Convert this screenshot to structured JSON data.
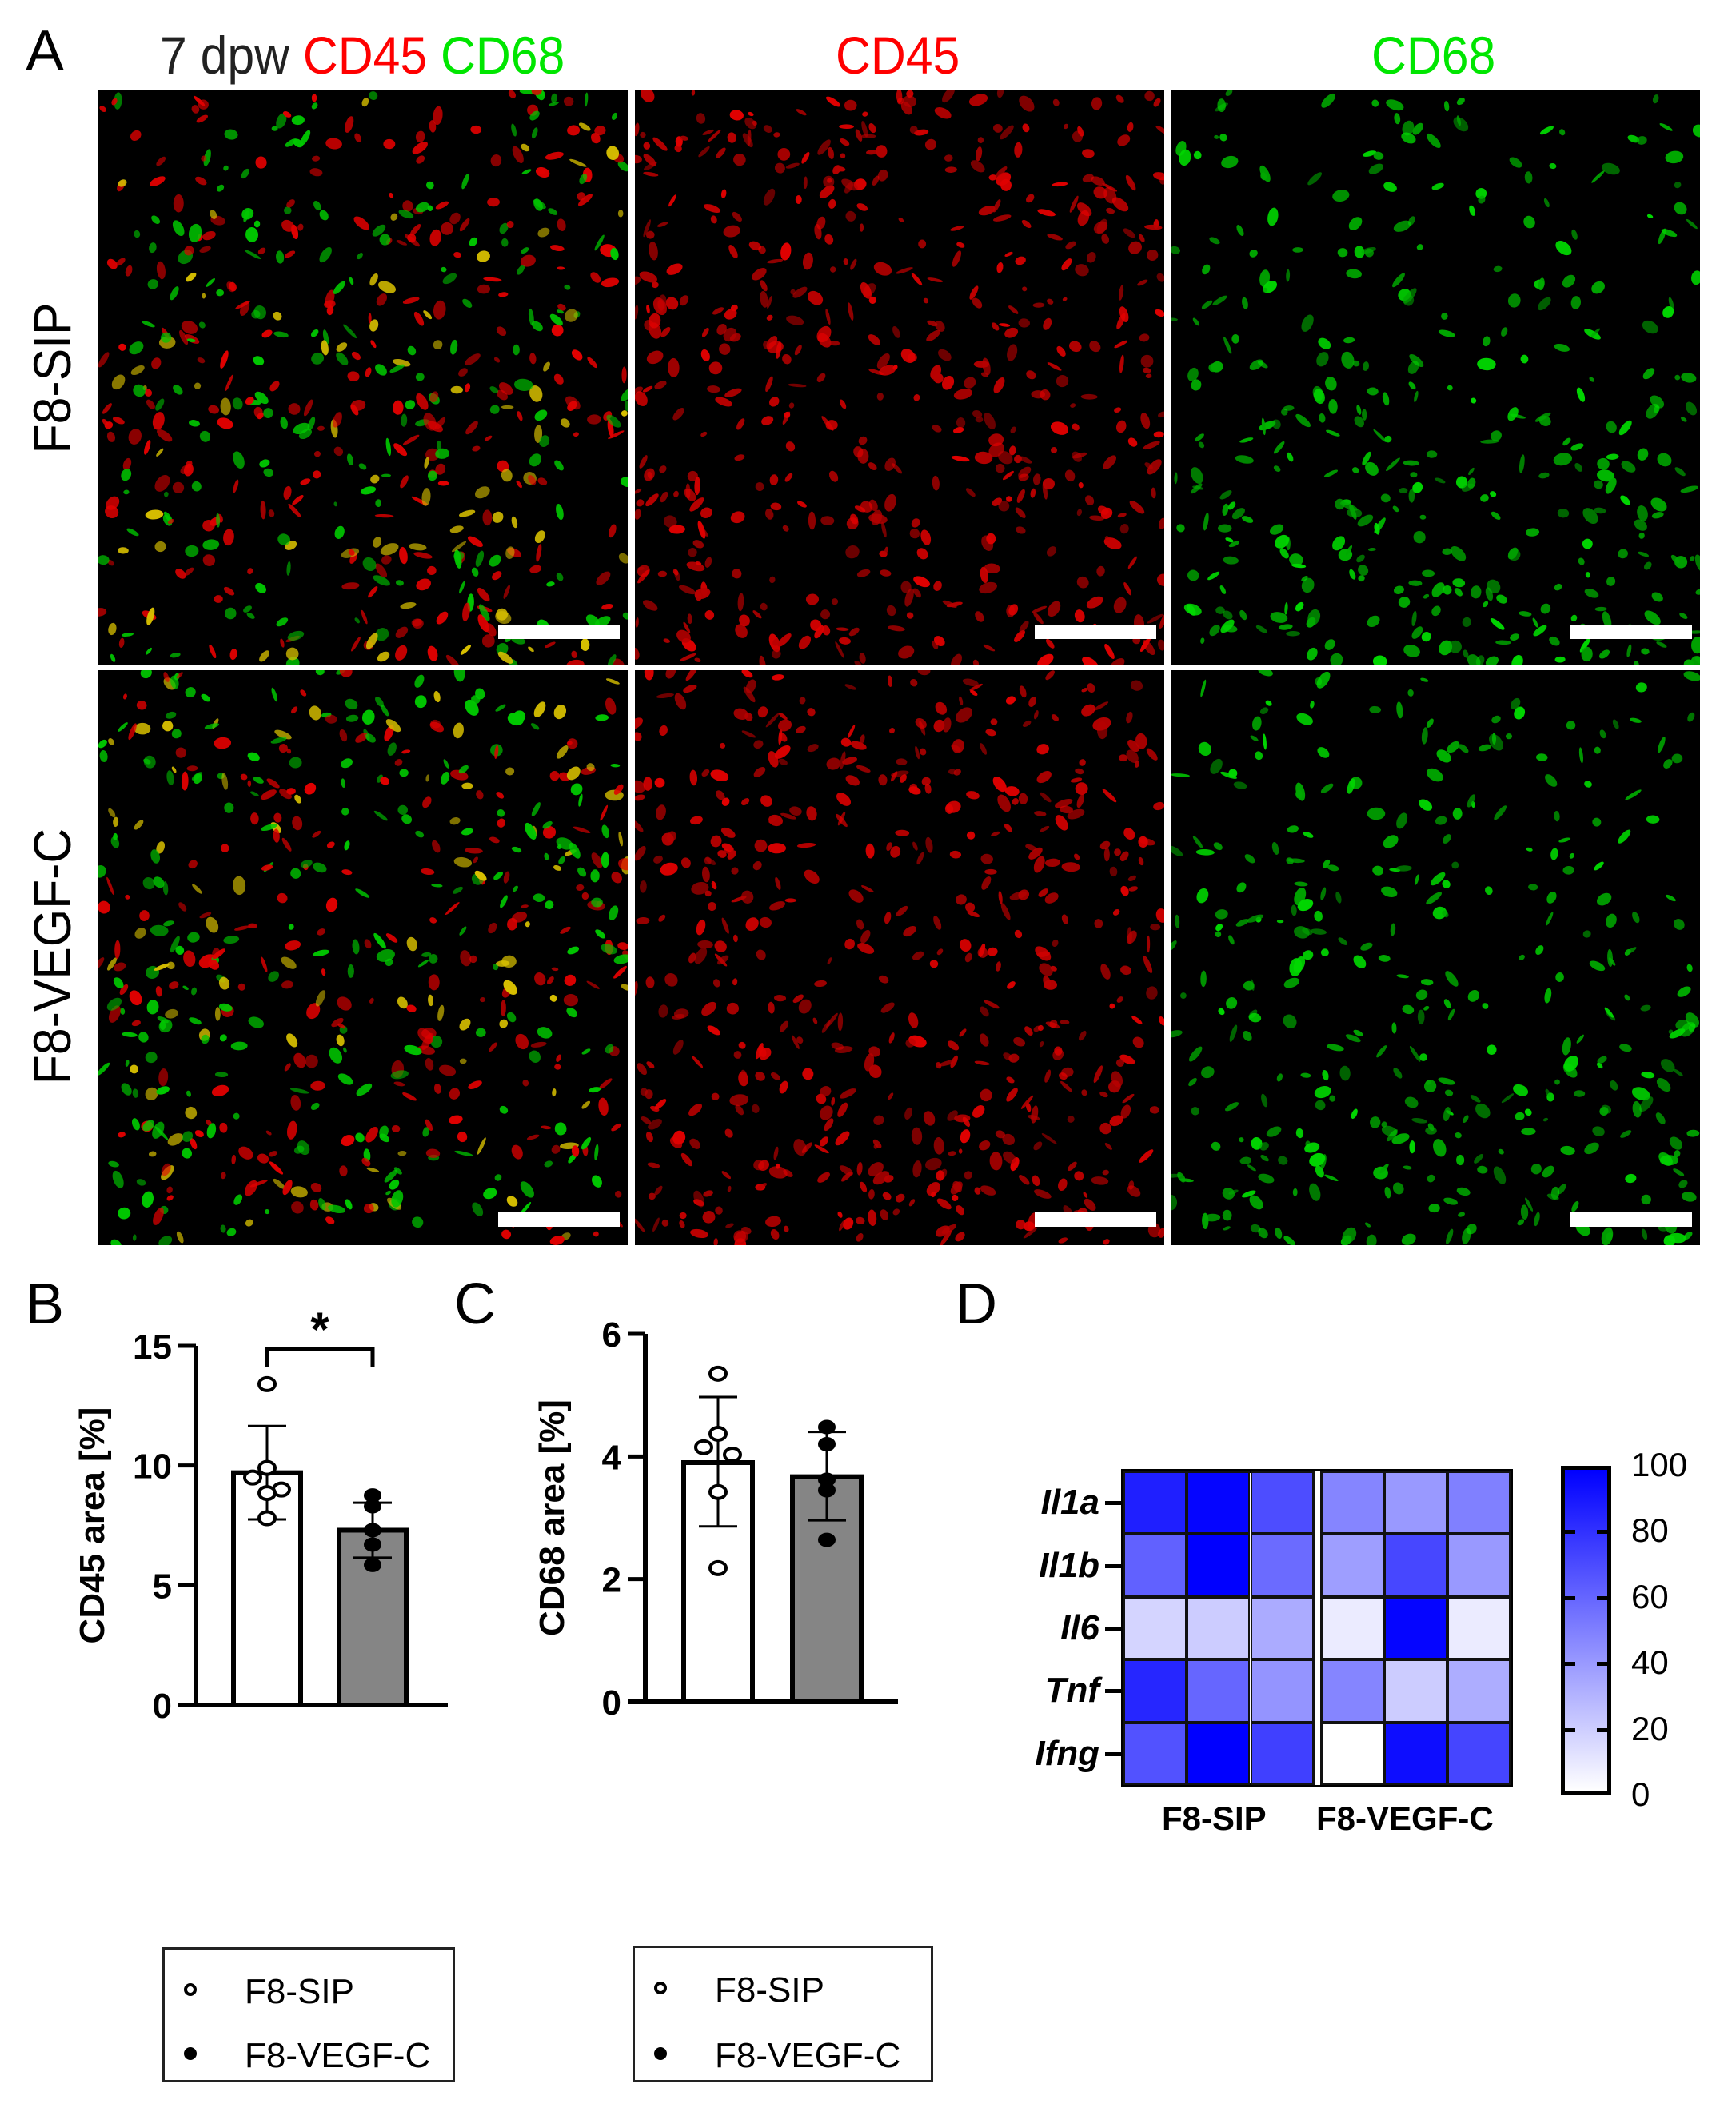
{
  "panelA": {
    "letter": "A",
    "title_prefix": "7 dpw",
    "title_cd45": "CD45",
    "title_cd68": "CD68",
    "col2_title": "CD45",
    "col3_title": "CD68",
    "row1_label": "F8-SIP",
    "row2_label": "F8-VEGF-C",
    "colors": {
      "red": "#ff0000",
      "green": "#00e600",
      "text": "#222222"
    }
  },
  "panelB": {
    "letter": "B"
  },
  "panelC": {
    "letter": "C"
  },
  "panelD": {
    "letter": "D"
  },
  "legendB": {
    "items": [
      {
        "label": "F8-SIP",
        "marker": "open-circle"
      },
      {
        "label": "F8-VEGF-C",
        "marker": "filled-circle"
      }
    ]
  },
  "legendC": {
    "items": [
      {
        "label": "F8-SIP",
        "marker": "open-circle"
      },
      {
        "label": "F8-VEGF-C",
        "marker": "filled-circle"
      }
    ]
  },
  "chart_data": [
    {
      "id": "B",
      "type": "bar",
      "title": "",
      "xlabel": "",
      "ylabel": "CD45 area [%]",
      "ylim": [
        0,
        15
      ],
      "yticks": [
        0,
        5,
        10,
        15
      ],
      "grid": false,
      "legend_position": "bottom",
      "categories": [
        "F8-SIP",
        "F8-VEGF-C"
      ],
      "bar_colors": [
        "#ffffff",
        "#858585"
      ],
      "series": [
        {
          "name": "mean",
          "values": [
            9.7,
            7.3
          ]
        },
        {
          "name": "sd_upper",
          "values": [
            11.65,
            8.45
          ]
        },
        {
          "name": "sd_lower",
          "values": [
            7.75,
            6.15
          ]
        }
      ],
      "points": {
        "F8-SIP": [
          13.4,
          9.9,
          9.5,
          9.0,
          8.85,
          7.8
        ],
        "F8-VEGF-C": [
          8.75,
          8.3,
          7.3,
          6.7,
          5.85
        ]
      },
      "annotations": [
        {
          "text": "*",
          "between": [
            "F8-SIP",
            "F8-VEGF-C"
          ],
          "type": "significance-bracket"
        }
      ]
    },
    {
      "id": "C",
      "type": "bar",
      "title": "",
      "xlabel": "",
      "ylabel": "CD68 area [%]",
      "ylim": [
        0,
        6
      ],
      "yticks": [
        0,
        2,
        4,
        6
      ],
      "grid": false,
      "legend_position": "bottom",
      "categories": [
        "F8-SIP",
        "F8-VEGF-C"
      ],
      "bar_colors": [
        "#ffffff",
        "#858585"
      ],
      "series": [
        {
          "name": "mean",
          "values": [
            3.9,
            3.67
          ]
        },
        {
          "name": "sd_upper",
          "values": [
            4.97,
            4.4
          ]
        },
        {
          "name": "sd_lower",
          "values": [
            2.86,
            2.96
          ]
        }
      ],
      "points": {
        "F8-SIP": [
          5.35,
          4.37,
          4.15,
          4.03,
          3.42,
          2.18
        ],
        "F8-VEGF-C": [
          4.48,
          4.2,
          3.62,
          3.45,
          2.64
        ]
      }
    },
    {
      "id": "D",
      "type": "heatmap",
      "title": "",
      "rows": [
        "Il1a",
        "Il1b",
        "Il6",
        "Tnf",
        "Ifng"
      ],
      "col_groups": [
        {
          "label": "F8-SIP",
          "n": 3
        },
        {
          "label": "F8-VEGF-C",
          "n": 3
        }
      ],
      "values": [
        [
          88,
          98,
          70,
          48,
          40,
          50
        ],
        [
          62,
          100,
          58,
          38,
          72,
          40
        ],
        [
          17,
          20,
          33,
          8,
          98,
          8
        ],
        [
          85,
          60,
          42,
          48,
          20,
          32
        ],
        [
          68,
          100,
          75,
          0,
          95,
          73
        ]
      ],
      "colorbar": {
        "min": 0,
        "max": 100,
        "ticks": [
          "100",
          "80",
          "60",
          "40",
          "20",
          "0"
        ],
        "low_color": "#ffffff",
        "high_color": "#0000ff"
      }
    }
  ]
}
